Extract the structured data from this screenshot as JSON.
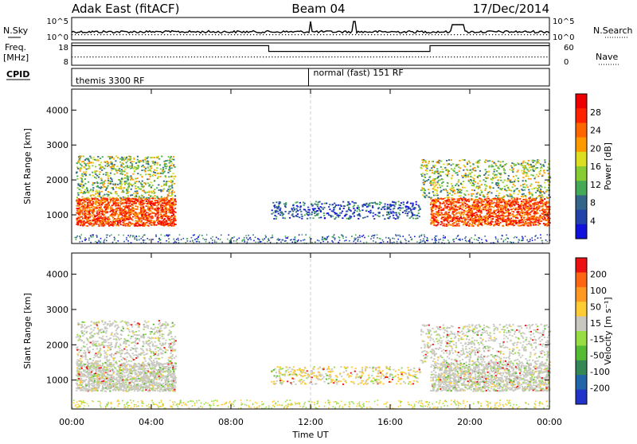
{
  "header": {
    "radar": "Adak East (fitACF)",
    "beam": "Beam 04",
    "date": "17/Dec/2014"
  },
  "noise_panel": {
    "left_label": "N.Sky",
    "right_label": "N.Search",
    "left_ticks": [
      "10^5",
      "10^0"
    ],
    "right_ticks": [
      "10^5",
      "10^0"
    ]
  },
  "freq_panel": {
    "left_label_1": "Freq.",
    "left_label_2": "[MHz]",
    "right_label": "Nave",
    "left_ticks": [
      "18",
      "8"
    ],
    "right_ticks": [
      "60",
      "0"
    ],
    "freq_segments": [
      {
        "t_start": 0.0,
        "t_end": 9.9,
        "level": 0.88
      },
      {
        "t_start": 9.9,
        "t_end": 18.0,
        "level": 0.62
      },
      {
        "t_start": 18.0,
        "t_end": 24.0,
        "level": 0.88
      }
    ]
  },
  "cpid_panel": {
    "label": "CPID",
    "segments": [
      {
        "t_start": 0.0,
        "text": "themis 3300 RF"
      },
      {
        "t_start": 11.9,
        "text": "normal (fast) 151 RF"
      }
    ]
  },
  "x_axis": {
    "label": "Time UT",
    "ticks": [
      "00:00",
      "04:00",
      "08:00",
      "12:00",
      "16:00",
      "20:00",
      "00:00"
    ],
    "range_hours": [
      0,
      24
    ]
  },
  "power_panel": {
    "ylabel": "Slant Range [km]",
    "yticks": [
      "1000",
      "2000",
      "3000",
      "4000"
    ],
    "ylim": [
      180,
      4600
    ],
    "colorbar_label": "Power [dB]",
    "colorbar_ticks": [
      "4",
      "8",
      "12",
      "16",
      "20",
      "24",
      "28"
    ],
    "colors": [
      "#1111dd",
      "#2244aa",
      "#336688",
      "#44aa55",
      "#88cc33",
      "#dddd22",
      "#ff9900",
      "#ff6600",
      "#ff2200",
      "#ee0000"
    ]
  },
  "velocity_panel": {
    "ylabel": "Slant Range [km]",
    "yticks": [
      "1000",
      "2000",
      "3000",
      "4000"
    ],
    "ylim": [
      180,
      4600
    ],
    "colorbar_label": "Velocity [m s⁻¹]",
    "colorbar_ticks": [
      "200",
      "100",
      "50",
      "15",
      "-15",
      "-50",
      "-100",
      "-200"
    ],
    "colors": [
      "#2233cc",
      "#2266aa",
      "#338855",
      "#55bb33",
      "#99dd44",
      "#c8c8c0",
      "#ffcc33",
      "#ff9922",
      "#ff6611",
      "#ee1111"
    ]
  },
  "chart_data": {
    "type": "heatmap",
    "x_range_hours": [
      0,
      24
    ],
    "y_range_km": [
      180,
      4600
    ],
    "power_regions": [
      {
        "t0": 0.2,
        "t1": 5.2,
        "r0": 700,
        "r1": 1500,
        "level": "strong"
      },
      {
        "t0": 0.2,
        "t1": 5.2,
        "r0": 1500,
        "r1": 2700,
        "level": "medium"
      },
      {
        "t0": 10.0,
        "t1": 17.5,
        "r0": 900,
        "r1": 1400,
        "level": "weak"
      },
      {
        "t0": 18.0,
        "t1": 24.0,
        "r0": 700,
        "r1": 1500,
        "level": "strong"
      },
      {
        "t0": 17.5,
        "t1": 24.0,
        "r0": 1500,
        "r1": 2600,
        "level": "medium"
      }
    ]
  }
}
